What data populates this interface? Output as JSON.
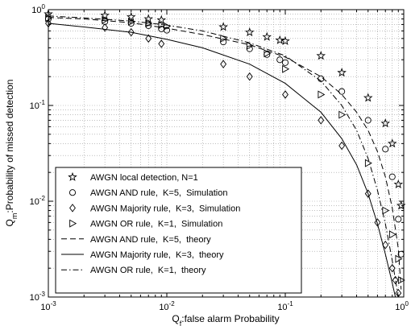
{
  "chart_data": {
    "type": "line",
    "title": "",
    "xlabel": {
      "base": "Q",
      "sub": "f",
      "rest": ":false alarm Probability"
    },
    "ylabel": {
      "base": "Q",
      "sub": "m",
      "rest": ":Probability of missed detection"
    },
    "xscale": "log",
    "yscale": "log",
    "xlim": [
      0.001,
      1
    ],
    "ylim": [
      0.001,
      1
    ],
    "grid": true,
    "x_ticks": [
      {
        "value": 0.001,
        "base": "10",
        "exp": "-3"
      },
      {
        "value": 0.01,
        "base": "10",
        "exp": "-2"
      },
      {
        "value": 0.1,
        "base": "10",
        "exp": "-1"
      },
      {
        "value": 1,
        "base": "10",
        "exp": "0"
      }
    ],
    "y_ticks": [
      {
        "value": 0.001,
        "base": "10",
        "exp": "-3"
      },
      {
        "value": 0.01,
        "base": "10",
        "exp": "-2"
      },
      {
        "value": 0.1,
        "base": "10",
        "exp": "-1"
      },
      {
        "value": 1,
        "base": "10",
        "exp": "0"
      }
    ],
    "legend_position": "bottom-left",
    "series": [
      {
        "name": "AWGN local detection, N=1",
        "style": "marker",
        "marker": "star",
        "x": [
          0.001,
          0.003,
          0.005,
          0.007,
          0.009,
          0.03,
          0.05,
          0.07,
          0.09,
          0.1,
          0.2,
          0.3,
          0.5,
          0.7,
          0.8,
          0.9,
          0.95
        ],
        "y": [
          0.9,
          0.87,
          0.84,
          0.8,
          0.78,
          0.66,
          0.58,
          0.52,
          0.48,
          0.47,
          0.33,
          0.22,
          0.12,
          0.065,
          0.04,
          0.015,
          0.009
        ]
      },
      {
        "name": "AWGN AND rule,  K=5,  Simulation",
        "style": "marker",
        "marker": "circle",
        "x": [
          0.001,
          0.003,
          0.005,
          0.007,
          0.009,
          0.01,
          0.03,
          0.05,
          0.07,
          0.09,
          0.1,
          0.2,
          0.3,
          0.5,
          0.7,
          0.8,
          0.9,
          0.95
        ],
        "y": [
          0.8,
          0.75,
          0.72,
          0.68,
          0.63,
          0.61,
          0.46,
          0.39,
          0.34,
          0.3,
          0.28,
          0.19,
          0.14,
          0.07,
          0.035,
          0.018,
          0.0065,
          0.0028
        ]
      },
      {
        "name": "AWGN Majority rule,  K=3,  Simulation",
        "style": "marker",
        "marker": "diamond",
        "x": [
          0.001,
          0.003,
          0.005,
          0.007,
          0.009,
          0.03,
          0.05,
          0.1,
          0.2,
          0.3,
          0.5,
          0.6,
          0.7,
          0.8,
          0.85,
          0.9
        ],
        "y": [
          0.72,
          0.65,
          0.58,
          0.5,
          0.44,
          0.27,
          0.2,
          0.13,
          0.07,
          0.038,
          0.012,
          0.006,
          0.0035,
          0.002,
          0.0015,
          0.0011
        ]
      },
      {
        "name": "AWGN OR rule,  K=1,  Simulation",
        "style": "marker",
        "marker": "triangle-right",
        "x": [
          0.001,
          0.003,
          0.005,
          0.007,
          0.009,
          0.01,
          0.03,
          0.05,
          0.07,
          0.1,
          0.2,
          0.3,
          0.5,
          0.7,
          0.8,
          0.9,
          0.95
        ],
        "y": [
          0.82,
          0.78,
          0.75,
          0.72,
          0.69,
          0.67,
          0.5,
          0.42,
          0.35,
          0.24,
          0.13,
          0.08,
          0.025,
          0.008,
          0.0045,
          0.0025,
          0.0015
        ]
      },
      {
        "name": "AWGN AND rule,  K=5,  theory",
        "style": "line",
        "dash": "dashed",
        "x": [
          0.001,
          0.002,
          0.005,
          0.01,
          0.02,
          0.05,
          0.1,
          0.2,
          0.3,
          0.4,
          0.5,
          0.6,
          0.7,
          0.8,
          0.9,
          0.95
        ],
        "y": [
          0.83,
          0.8,
          0.73,
          0.64,
          0.55,
          0.43,
          0.32,
          0.2,
          0.13,
          0.085,
          0.055,
          0.033,
          0.018,
          0.0085,
          0.0032,
          0.0012
        ]
      },
      {
        "name": "AWGN Majority rule,  K=3,  theory",
        "style": "line",
        "dash": "solid",
        "x": [
          0.001,
          0.002,
          0.005,
          0.01,
          0.02,
          0.05,
          0.1,
          0.2,
          0.3,
          0.4,
          0.5,
          0.6,
          0.7,
          0.8,
          0.85
        ],
        "y": [
          0.72,
          0.66,
          0.58,
          0.49,
          0.4,
          0.27,
          0.17,
          0.085,
          0.045,
          0.024,
          0.012,
          0.0058,
          0.0028,
          0.0014,
          0.001
        ]
      },
      {
        "name": "AWGN OR rule,  K=1,  theory",
        "style": "line",
        "dash": "dashdot",
        "x": [
          0.001,
          0.002,
          0.005,
          0.01,
          0.02,
          0.05,
          0.1,
          0.2,
          0.3,
          0.4,
          0.5,
          0.6,
          0.7,
          0.8,
          0.9
        ],
        "y": [
          0.86,
          0.82,
          0.76,
          0.69,
          0.6,
          0.45,
          0.33,
          0.18,
          0.1,
          0.055,
          0.028,
          0.013,
          0.0058,
          0.0024,
          0.001
        ]
      }
    ]
  }
}
